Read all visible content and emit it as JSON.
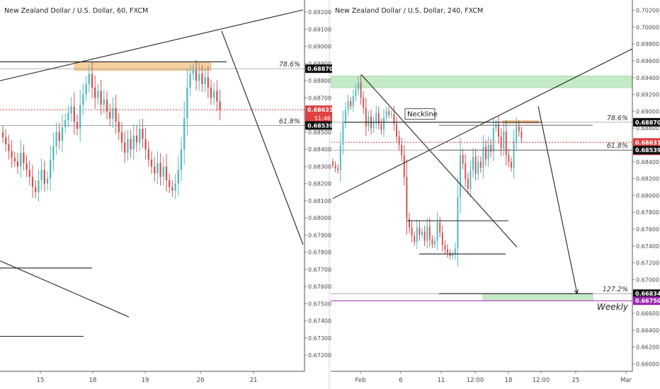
{
  "colors": {
    "up": "#53b9be",
    "down": "#d05452",
    "axis_text": "#4a4a4a",
    "price_line": "#e04040",
    "zone_orange": "#f5c488",
    "zone_green": "#b6e5b9",
    "weekly": "#9c27b0",
    "grid_level": "#999999",
    "black_label": "#111111"
  },
  "chart_data": [
    {
      "type": "candlestick",
      "title": "New Zealand Dollar / U.S. Dollar, 60, FXCM",
      "ylim": [
        0.6711,
        0.6925
      ],
      "x_range": [
        0,
        430
      ],
      "y_ticks": [
        0.692,
        0.691,
        0.69,
        0.689,
        0.688,
        0.687,
        0.686,
        0.685,
        0.684,
        0.683,
        0.682,
        0.681,
        0.68,
        0.679,
        0.678,
        0.677,
        0.676,
        0.675,
        0.674,
        0.673,
        0.672
      ],
      "y_tick_labels": [
        "0.69200",
        "0.69100",
        "0.69000",
        "0.68900",
        "0.68800",
        "0.68700",
        "0.68600",
        "0.68500",
        "0.68400",
        "0.68300",
        "0.68200",
        "0.68100",
        "0.68000",
        "0.67900",
        "0.67800",
        "0.67700",
        "0.67600",
        "0.67500",
        "0.67400",
        "0.67300",
        "0.67200"
      ],
      "x_ticks": [
        {
          "x": 57,
          "label": "15"
        },
        {
          "x": 131,
          "label": "18"
        },
        {
          "x": 205,
          "label": "19"
        },
        {
          "x": 283,
          "label": "20"
        },
        {
          "x": 358,
          "label": "21"
        }
      ],
      "candles": {
        "x_start": 4,
        "x_step": 4.2,
        "closes": [
          0.6847,
          0.6843,
          0.6839,
          0.6835,
          0.6833,
          0.683,
          0.6838,
          0.6832,
          0.6828,
          0.6824,
          0.6818,
          0.6815,
          0.6822,
          0.6828,
          0.682,
          0.6823,
          0.6834,
          0.6842,
          0.685,
          0.6845,
          0.6853,
          0.6857,
          0.6861,
          0.6865,
          0.6856,
          0.6852,
          0.6866,
          0.6872,
          0.6878,
          0.6884,
          0.6876,
          0.687,
          0.6874,
          0.6866,
          0.6869,
          0.6862,
          0.6858,
          0.6864,
          0.6856,
          0.685,
          0.6844,
          0.6838,
          0.6846,
          0.684,
          0.6848,
          0.6844,
          0.6852,
          0.6846,
          0.684,
          0.6834,
          0.683,
          0.6826,
          0.6832,
          0.6824,
          0.683,
          0.6822,
          0.6818,
          0.6816,
          0.682,
          0.6828,
          0.684,
          0.6858,
          0.6876,
          0.6884,
          0.6886,
          0.688,
          0.6884,
          0.6878,
          0.6882,
          0.6876,
          0.687,
          0.6874,
          0.6868,
          0.6863
        ],
        "open": 0.685
      },
      "price_levels": [
        {
          "price": 0.6887,
          "label": "0.68870",
          "fib": "78.6%",
          "style": "black"
        },
        {
          "price": 0.68631,
          "label": "0.68631",
          "extra": "51:46",
          "style": "red"
        },
        {
          "price": 0.68539,
          "label": "0.68539",
          "fib": "61.8%",
          "style": "black"
        }
      ],
      "zones": [
        {
          "name": "supply",
          "x0": 105,
          "x1": 298,
          "y0": 0.68905,
          "y1": 0.6886,
          "color": "orange"
        }
      ],
      "lines": [
        {
          "x0": 0,
          "y0": 0.688,
          "x1": 428,
          "y1": 0.69213
        },
        {
          "x0": 0,
          "y0": 0.6891,
          "x1": 320,
          "y1": 0.6891
        },
        {
          "x0": 313,
          "y0": 0.6909,
          "x1": 428,
          "y1": 0.67845
        },
        {
          "x0": 0,
          "y0": 0.6775,
          "x1": 182,
          "y1": 0.67423
        },
        {
          "x0": 0,
          "y0": 0.67708,
          "x1": 130,
          "y1": 0.67708
        },
        {
          "x0": 0,
          "y0": 0.6731,
          "x1": 118,
          "y1": 0.6731
        }
      ]
    },
    {
      "type": "candlestick",
      "title": "New Zealand Dollar / U.S. Dollar, 240, FXCM",
      "ylim": [
        0.6592,
        0.7028
      ],
      "x_range": [
        467,
        893
      ],
      "y_ticks": [
        0.702,
        0.7,
        0.698,
        0.696,
        0.694,
        0.692,
        0.69,
        0.688,
        0.686,
        0.684,
        0.682,
        0.68,
        0.678,
        0.676,
        0.674,
        0.672,
        0.67,
        0.668,
        0.666,
        0.664,
        0.662,
        0.66
      ],
      "y_tick_labels": [
        "0.70200",
        "0.70000",
        "0.69800",
        "0.69600",
        "0.69400",
        "0.69200",
        "0.69000",
        "0.68800",
        "0.68600",
        "0.68400",
        "0.68200",
        "0.68000",
        "0.67800",
        "0.67600",
        "0.67400",
        "0.67200",
        "0.67000",
        "0.66800",
        "0.66600",
        "0.66400",
        "0.66200",
        "0.66000"
      ],
      "x_ticks": [
        {
          "x": 509,
          "label": "Feb"
        },
        {
          "x": 566,
          "label": "6"
        },
        {
          "x": 623,
          "label": "11"
        },
        {
          "x": 671,
          "label": "12:00"
        },
        {
          "x": 718,
          "label": "18"
        },
        {
          "x": 764,
          "label": "12:00"
        },
        {
          "x": 813,
          "label": "25"
        },
        {
          "x": 884,
          "label": "Mar"
        }
      ],
      "candles": {
        "x_start": 470,
        "x_step": 3.6,
        "closes": [
          0.6836,
          0.6832,
          0.683,
          0.686,
          0.6888,
          0.6902,
          0.6912,
          0.6906,
          0.6918,
          0.6926,
          0.6934,
          0.6916,
          0.6904,
          0.6882,
          0.6894,
          0.688,
          0.6887,
          0.6898,
          0.6885,
          0.6878,
          0.6893,
          0.69,
          0.6896,
          0.6897,
          0.6885,
          0.687,
          0.686,
          0.6848,
          0.6822,
          0.6772,
          0.6762,
          0.6752,
          0.6745,
          0.6762,
          0.6753,
          0.6757,
          0.6746,
          0.6763,
          0.6748,
          0.6742,
          0.6746,
          0.6768,
          0.6756,
          0.6741,
          0.6736,
          0.6732,
          0.6728,
          0.673,
          0.6737,
          0.6798,
          0.6848,
          0.6838,
          0.682,
          0.6808,
          0.683,
          0.6846,
          0.6826,
          0.684,
          0.6833,
          0.6858,
          0.6843,
          0.686,
          0.6852,
          0.688,
          0.6885,
          0.687,
          0.6856,
          0.6876,
          0.6848,
          0.684,
          0.6833,
          0.6864,
          0.6882,
          0.6876,
          0.6868
        ],
        "open": 0.684
      },
      "price_levels": [
        {
          "price": 0.6887,
          "label": "0.68870",
          "fib": "78.6%",
          "style": "black"
        },
        {
          "price": 0.68631,
          "label": "0.68631",
          "extra": "03:51:46",
          "style": "red"
        },
        {
          "price": 0.68539,
          "label": "0.68539",
          "fib": "61.8%",
          "style": "black"
        },
        {
          "price": 0.66834,
          "label": "0.66834",
          "fib": "127.2%",
          "style": "black"
        },
        {
          "price": 0.6675,
          "label": "0.66750",
          "fib": "Weekly",
          "style": "purple"
        }
      ],
      "zones": [
        {
          "name": "top-zone",
          "x0": 467,
          "x1": 893,
          "y0": 0.6942,
          "y1": 0.6928,
          "color": "green"
        },
        {
          "name": "target-zone",
          "x0": 682,
          "x1": 837,
          "y0": 0.66834,
          "y1": 0.6675,
          "color": "green"
        },
        {
          "name": "neckline-box",
          "x0": 710,
          "x1": 760,
          "y0": 0.6889,
          "y1": 0.6886,
          "color": "orange"
        }
      ],
      "annotations": [
        {
          "text": "Neckline",
          "x": 574,
          "price": 0.68955
        }
      ],
      "lines": [
        {
          "x0": 486,
          "y0": 0.6887,
          "x1": 765,
          "y1": 0.6887
        },
        {
          "x0": 470,
          "y0": 0.67965,
          "x1": 893,
          "y1": 0.69742
        },
        {
          "x0": 510,
          "y0": 0.69438,
          "x1": 730,
          "y1": 0.67387
        },
        {
          "x0": 575,
          "y0": 0.677,
          "x1": 718,
          "y1": 0.677
        },
        {
          "x0": 592,
          "y0": 0.67306,
          "x1": 714,
          "y1": 0.67306
        },
        {
          "x0": 760,
          "y0": 0.6906,
          "x1": 815,
          "y1": 0.66834,
          "arrow": true
        },
        {
          "x0": 620,
          "y0": 0.68834,
          "x1": 837,
          "y1": 0.68834,
          "color": "#666"
        },
        {
          "x0": 620,
          "y0": 0.68539,
          "x1": 893,
          "y1": 0.68539,
          "color": "#666"
        },
        {
          "x0": 620,
          "y0": 0.66834,
          "x1": 837,
          "y1": 0.66834
        }
      ]
    }
  ]
}
